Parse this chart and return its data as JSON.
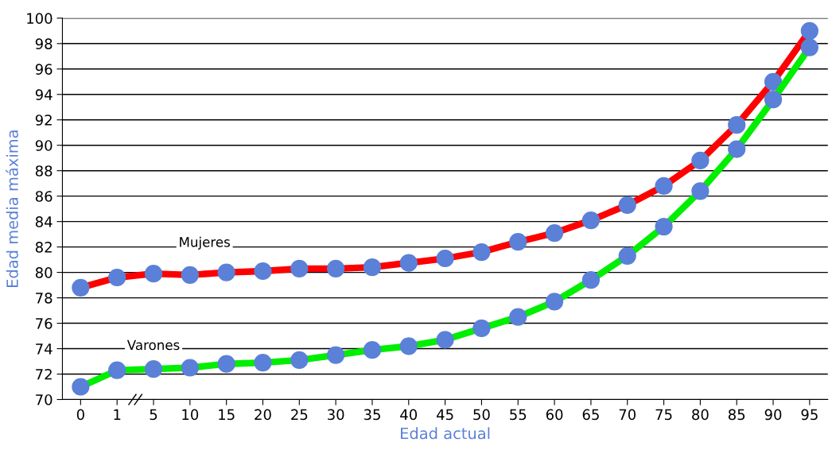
{
  "chart_data": {
    "type": "line",
    "xlabel": "Edad actual",
    "ylabel": "Edad media máxima",
    "categories": [
      "0",
      "1",
      "5",
      "10",
      "15",
      "20",
      "25",
      "30",
      "35",
      "40",
      "45",
      "50",
      "55",
      "60",
      "65",
      "70",
      "75",
      "80",
      "85",
      "90",
      "95"
    ],
    "series": [
      {
        "name": "Mujeres",
        "color": "#ff0000",
        "values": [
          78.8,
          79.6,
          79.9,
          79.8,
          80.0,
          80.1,
          80.3,
          80.3,
          80.4,
          80.75,
          81.1,
          81.6,
          82.4,
          83.1,
          84.1,
          85.3,
          86.8,
          88.8,
          91.6,
          95.0,
          99.0
        ]
      },
      {
        "name": "Varones",
        "color": "#00ee00",
        "values": [
          71.0,
          72.3,
          72.4,
          72.5,
          72.8,
          72.9,
          73.1,
          73.5,
          73.9,
          74.2,
          74.7,
          75.6,
          76.5,
          77.7,
          79.4,
          81.3,
          83.6,
          86.4,
          89.7,
          93.6,
          97.7
        ]
      }
    ],
    "ylim": [
      70,
      100
    ],
    "yticks": [
      70,
      72,
      74,
      76,
      78,
      80,
      82,
      84,
      86,
      88,
      90,
      92,
      94,
      96,
      98,
      100
    ],
    "grid": "y",
    "legend": false,
    "marker": "circle",
    "line_style": "solid"
  }
}
